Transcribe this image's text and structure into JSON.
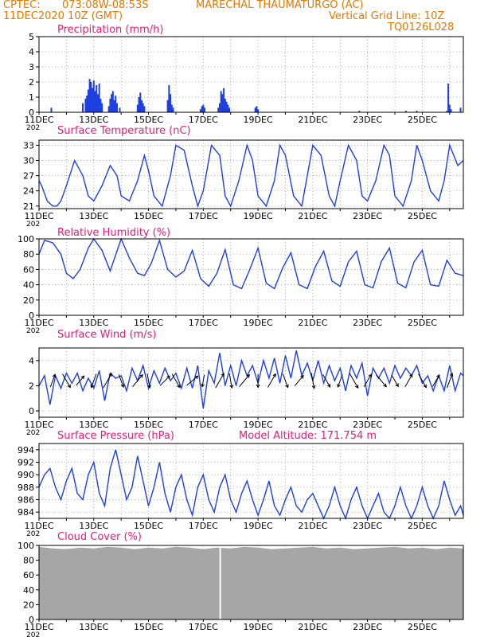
{
  "header": {
    "source": "CPTEC:",
    "coords": "073:08W-08:53S",
    "station": "MARECHAL THAUMATURGO (AC)",
    "date": "11DEC2020 10Z (GMT)",
    "grid_note": "Vertical Grid Line: 10Z",
    "code": "TQ0126L028",
    "year_fragment": "202"
  },
  "colors": {
    "header": "#e07a00",
    "title": "#e0207a",
    "line": "#1f3fe0",
    "bar": "#1f3fe0",
    "cloud": "#a6a6a6",
    "arrow": "#000000"
  },
  "x_tick_labels": [
    "11DEC",
    "13DEC",
    "15DEC",
    "17DEC",
    "19DEC",
    "21DEC",
    "23DEC",
    "25DEC"
  ],
  "chart_data": [
    {
      "type": "bar",
      "title": "Precipitation (mm/h)",
      "ylim": [
        0,
        5
      ],
      "yticks": [
        0,
        1,
        2,
        3,
        4,
        5
      ],
      "x": [
        0.45,
        1.6,
        1.7,
        1.75,
        1.8,
        1.85,
        1.9,
        1.95,
        2.0,
        2.05,
        2.1,
        2.15,
        2.2,
        2.25,
        2.3,
        2.55,
        2.6,
        2.65,
        2.7,
        2.75,
        2.8,
        2.85,
        2.95,
        3.6,
        3.65,
        3.7,
        3.75,
        3.8,
        3.85,
        4.7,
        4.75,
        4.8,
        4.85,
        4.9,
        5.9,
        5.95,
        6.0,
        6.05,
        6.55,
        6.6,
        6.65,
        6.7,
        6.75,
        6.8,
        6.85,
        6.9,
        6.95,
        7.9,
        7.95,
        8.0,
        11.7,
        13.4,
        13.8,
        14.9,
        14.95,
        15.0,
        15.05,
        15.4
      ],
      "values": [
        0.3,
        0.6,
        0.9,
        1.1,
        1.5,
        2.2,
        2.0,
        1.6,
        2.1,
        1.4,
        1.8,
        1.2,
        1.9,
        0.9,
        0.6,
        0.4,
        0.9,
        1.2,
        1.4,
        0.8,
        1.1,
        0.6,
        0.3,
        0.5,
        1.0,
        1.3,
        0.8,
        0.6,
        0.4,
        0.8,
        1.8,
        1.2,
        0.5,
        0.3,
        0.2,
        0.4,
        0.5,
        0.3,
        0.3,
        0.6,
        1.4,
        1.2,
        1.6,
        0.9,
        0.7,
        0.5,
        0.3,
        0.3,
        0.4,
        0.2,
        0.1,
        0.1,
        0.1,
        0.1,
        1.9,
        0.5,
        0.2,
        0.3
      ]
    },
    {
      "type": "line",
      "title": "Surface Temperature (nC)",
      "ylim": [
        20.5,
        34
      ],
      "yticks": [
        21,
        24,
        27,
        30,
        33
      ],
      "x": [
        0,
        0.1,
        0.3,
        0.5,
        0.65,
        0.8,
        1.0,
        1.3,
        1.6,
        1.8,
        2.0,
        2.3,
        2.6,
        2.85,
        3.0,
        3.3,
        3.6,
        3.85,
        4.0,
        4.2,
        4.5,
        4.8,
        5.0,
        5.3,
        5.6,
        5.8,
        6.0,
        6.3,
        6.6,
        6.8,
        7.0,
        7.3,
        7.6,
        7.8,
        8.0,
        8.3,
        8.6,
        8.8,
        9.0,
        9.3,
        9.6,
        9.8,
        10.0,
        10.3,
        10.6,
        10.8,
        11.0,
        11.3,
        11.6,
        11.8,
        12.0,
        12.3,
        12.6,
        12.8,
        13.0,
        13.3,
        13.6,
        13.8,
        14.0,
        14.3,
        14.6,
        14.8,
        15.0,
        15.3,
        15.5
      ],
      "values": [
        26,
        25,
        22,
        21,
        21,
        22,
        25,
        30,
        27,
        23,
        22,
        25,
        29,
        27,
        23,
        22,
        26,
        31,
        28,
        23,
        21,
        27,
        33,
        32,
        25,
        21,
        24,
        33,
        31,
        23,
        21,
        26,
        33,
        30,
        23,
        21,
        26,
        33,
        31,
        23,
        21,
        27,
        33,
        31,
        23,
        21,
        26,
        33,
        30,
        23,
        22,
        26,
        33,
        31,
        23,
        21,
        26,
        33,
        30,
        24,
        22,
        26,
        33,
        29,
        30
      ]
    },
    {
      "type": "line",
      "title": "Relative Humidity (%)",
      "ylim": [
        0,
        100
      ],
      "yticks": [
        0,
        20,
        40,
        60,
        80,
        100
      ],
      "x": [
        0,
        0.2,
        0.5,
        0.8,
        1.0,
        1.25,
        1.5,
        1.8,
        2.0,
        2.3,
        2.6,
        3.0,
        3.3,
        3.6,
        3.85,
        4.1,
        4.4,
        4.7,
        5.0,
        5.3,
        5.6,
        5.9,
        6.2,
        6.5,
        6.8,
        7.1,
        7.4,
        7.7,
        8.0,
        8.3,
        8.6,
        8.9,
        9.2,
        9.5,
        9.8,
        10.1,
        10.4,
        10.7,
        11.0,
        11.3,
        11.6,
        11.9,
        12.2,
        12.5,
        12.8,
        13.1,
        13.4,
        13.7,
        14.0,
        14.3,
        14.6,
        14.9,
        15.2,
        15.5
      ],
      "values": [
        80,
        98,
        95,
        80,
        55,
        48,
        60,
        88,
        100,
        85,
        58,
        100,
        75,
        55,
        52,
        68,
        98,
        60,
        50,
        58,
        85,
        48,
        38,
        55,
        86,
        40,
        35,
        60,
        88,
        42,
        35,
        62,
        82,
        40,
        35,
        64,
        84,
        45,
        38,
        70,
        84,
        40,
        36,
        70,
        88,
        42,
        36,
        70,
        85,
        40,
        38,
        72,
        55,
        52
      ]
    },
    {
      "type": "line",
      "title": "Surface Wind (m/s)",
      "ylim": [
        -0.5,
        5
      ],
      "yticks": [
        0,
        2,
        4
      ],
      "x": [
        0,
        0.2,
        0.4,
        0.6,
        0.8,
        1.0,
        1.2,
        1.4,
        1.6,
        1.8,
        2.0,
        2.2,
        2.4,
        2.6,
        2.8,
        3.0,
        3.2,
        3.4,
        3.6,
        3.8,
        4.0,
        4.2,
        4.4,
        4.6,
        4.8,
        5.0,
        5.2,
        5.4,
        5.6,
        5.8,
        6.0,
        6.2,
        6.4,
        6.6,
        6.8,
        7.0,
        7.2,
        7.4,
        7.6,
        7.8,
        8.0,
        8.2,
        8.4,
        8.6,
        8.8,
        9.0,
        9.2,
        9.4,
        9.6,
        9.8,
        10.0,
        10.2,
        10.4,
        10.6,
        10.8,
        11.0,
        11.2,
        11.4,
        11.6,
        11.8,
        12.0,
        12.2,
        12.4,
        12.6,
        12.8,
        13.0,
        13.2,
        13.4,
        13.6,
        13.8,
        14.0,
        14.2,
        14.4,
        14.6,
        14.8,
        15.0,
        15.2,
        15.4,
        15.5
      ],
      "values": [
        2,
        2.8,
        0.5,
        2.8,
        1.8,
        3,
        2.2,
        3,
        1.6,
        2.6,
        1.8,
        3.2,
        0.8,
        3,
        2.6,
        2.8,
        1.6,
        3.4,
        2.4,
        3.6,
        1.8,
        3.2,
        2.2,
        3.4,
        2.4,
        3,
        1.8,
        3.4,
        1.8,
        3.6,
        0.2,
        3.2,
        2.2,
        4.6,
        2,
        3.6,
        2,
        4,
        2.8,
        3.6,
        2.2,
        4,
        2.6,
        4.2,
        2.2,
        4.4,
        2.6,
        4.8,
        2.8,
        3.8,
        2.4,
        4,
        2.2,
        3.6,
        2.4,
        3.4,
        1.6,
        3.6,
        2.6,
        3.8,
        1.2,
        3.4,
        2.6,
        3.4,
        2.2,
        3.6,
        2.6,
        3.4,
        2.8,
        3.6,
        2.2,
        2.8,
        1.6,
        2.8,
        1.6,
        3.6,
        1.6,
        3,
        2.8
      ]
    },
    {
      "type": "line",
      "title": "Surface Pressure (hPa)",
      "annotation": "Model Altitude: 171.754 m",
      "ylim": [
        983,
        995
      ],
      "yticks": [
        984,
        986,
        988,
        990,
        992,
        994
      ],
      "x": [
        0,
        0.2,
        0.4,
        0.6,
        0.8,
        1.0,
        1.2,
        1.4,
        1.6,
        1.8,
        2.0,
        2.2,
        2.4,
        2.6,
        2.8,
        3.0,
        3.2,
        3.4,
        3.6,
        3.8,
        4.0,
        4.2,
        4.4,
        4.6,
        4.8,
        5.0,
        5.2,
        5.4,
        5.6,
        5.8,
        6.0,
        6.2,
        6.4,
        6.6,
        6.8,
        7.0,
        7.2,
        7.4,
        7.6,
        7.8,
        8.0,
        8.2,
        8.4,
        8.6,
        8.8,
        9.0,
        9.2,
        9.4,
        9.6,
        9.8,
        10.0,
        10.2,
        10.4,
        10.6,
        10.8,
        11.0,
        11.2,
        11.4,
        11.6,
        11.8,
        12.0,
        12.2,
        12.4,
        12.6,
        12.8,
        13.0,
        13.2,
        13.4,
        13.6,
        13.8,
        14.0,
        14.2,
        14.4,
        14.6,
        14.8,
        15.0,
        15.2,
        15.4,
        15.5
      ],
      "values": [
        988,
        990,
        991,
        988,
        986,
        989,
        991,
        987,
        986,
        990,
        992,
        987,
        985,
        991,
        994,
        990,
        986,
        988,
        993,
        989,
        985,
        988,
        992,
        987,
        984,
        988,
        990,
        986,
        983.5,
        988,
        990,
        986,
        984,
        988,
        990,
        986,
        984,
        987,
        989,
        986,
        983.5,
        986,
        989,
        985,
        983.5,
        986,
        988,
        985,
        984,
        986,
        987,
        985,
        983,
        985,
        988,
        985,
        983,
        986,
        988,
        985,
        983,
        985,
        987,
        984,
        983,
        985,
        988,
        985,
        983,
        985,
        988,
        985,
        983,
        985,
        989,
        986,
        983.5,
        985,
        983.5
      ]
    },
    {
      "type": "area",
      "title": "Cloud Cover (%)",
      "ylim": [
        0,
        100
      ],
      "yticks": [
        0,
        20,
        40,
        60,
        80,
        100
      ],
      "x": [
        0,
        0.5,
        1.0,
        1.5,
        2.0,
        2.5,
        3.0,
        3.5,
        4.0,
        4.5,
        5.0,
        5.5,
        6.0,
        6.5,
        7.0,
        7.5,
        8.0,
        8.5,
        9.0,
        9.5,
        10.0,
        10.5,
        11.0,
        11.5,
        12.0,
        12.5,
        13.0,
        13.5,
        14.0,
        14.5,
        15.0,
        15.5
      ],
      "values": [
        98,
        96,
        95,
        97,
        96,
        98,
        97,
        95,
        97,
        96,
        98,
        97,
        95,
        97,
        96,
        98,
        97,
        95,
        96,
        97,
        98,
        96,
        97,
        95,
        96,
        97,
        98,
        96,
        97,
        95,
        97,
        96
      ],
      "gap_x": 6.62
    }
  ],
  "wind_arrows": [
    {
      "x": 0.5,
      "dir": 20,
      "len": 1.2
    },
    {
      "x": 1.0,
      "dir": 150,
      "len": 1.4
    },
    {
      "x": 1.5,
      "dir": 40,
      "len": 1.1
    },
    {
      "x": 2.0,
      "dir": 200,
      "len": 1.3
    },
    {
      "x": 2.5,
      "dir": 30,
      "len": 1.5
    },
    {
      "x": 3.0,
      "dir": 160,
      "len": 1.2
    },
    {
      "x": 3.6,
      "dir": 40,
      "len": 1.4
    },
    {
      "x": 4.0,
      "dir": 170,
      "len": 1.3
    },
    {
      "x": 4.6,
      "dir": 45,
      "len": 1.2
    },
    {
      "x": 5.0,
      "dir": 150,
      "len": 1.4
    },
    {
      "x": 5.6,
      "dir": 50,
      "len": 1.3
    },
    {
      "x": 6.0,
      "dir": 190,
      "len": 1.1
    },
    {
      "x": 6.6,
      "dir": 30,
      "len": 1.5
    },
    {
      "x": 7.0,
      "dir": 170,
      "len": 1.3
    },
    {
      "x": 7.5,
      "dir": 40,
      "len": 1.4
    },
    {
      "x": 8.0,
      "dir": 180,
      "len": 1.2
    },
    {
      "x": 8.5,
      "dir": 30,
      "len": 1.4
    },
    {
      "x": 9.0,
      "dir": 160,
      "len": 1.3
    },
    {
      "x": 9.5,
      "dir": 40,
      "len": 1.2
    },
    {
      "x": 10.0,
      "dir": 170,
      "len": 1.4
    },
    {
      "x": 10.5,
      "dir": 150,
      "len": 1.3
    },
    {
      "x": 11.0,
      "dir": 200,
      "len": 1.2
    },
    {
      "x": 11.5,
      "dir": 150,
      "len": 1.5
    },
    {
      "x": 12.0,
      "dir": 30,
      "len": 1.3
    },
    {
      "x": 12.5,
      "dir": 140,
      "len": 1.4
    },
    {
      "x": 13.0,
      "dir": 150,
      "len": 1.2
    },
    {
      "x": 13.5,
      "dir": 30,
      "len": 1.3
    },
    {
      "x": 14.0,
      "dir": 150,
      "len": 1.4
    },
    {
      "x": 14.5,
      "dir": 30,
      "len": 1.2
    },
    {
      "x": 15.0,
      "dir": 20,
      "len": 1.4
    }
  ]
}
